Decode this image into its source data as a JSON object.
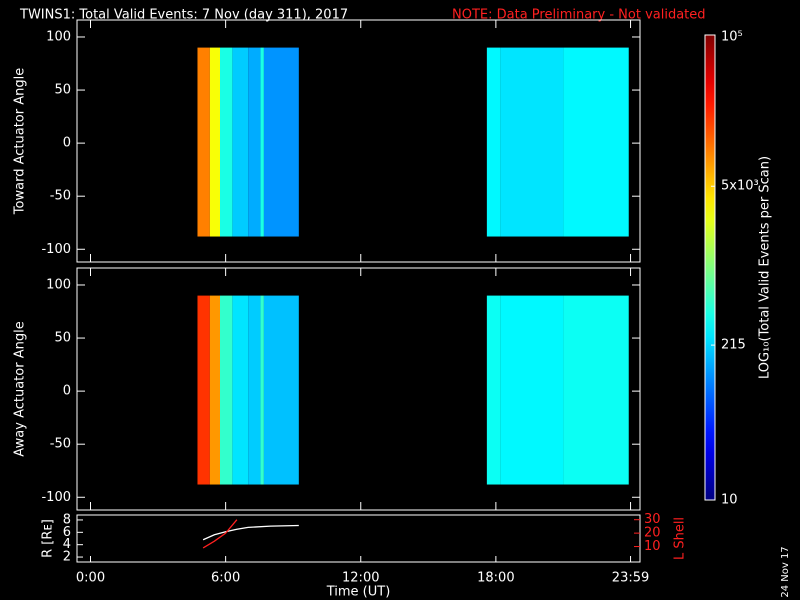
{
  "title": "TWINS1: Total Valid Events:  7 Nov (day 311), 2017",
  "note": "NOTE: Data Preliminary - Not validated",
  "date_stamp": "24 Nov 17",
  "chart_data": [
    {
      "type": "heatmap",
      "ylabel": "Toward Actuator Angle",
      "xlim": [
        -0.6,
        24.4
      ],
      "xticks": [
        0,
        6,
        12,
        18,
        23.98
      ],
      "ylim": [
        -112,
        116
      ],
      "yticks": [
        -100,
        -50,
        0,
        50,
        100
      ],
      "x_bins": [
        4.75,
        5.3,
        5.75,
        6.3,
        7.0,
        7.55,
        7.7,
        9.25,
        17.6,
        18.2,
        21.0,
        23.9
      ],
      "y_range": [
        -88,
        90
      ],
      "values": [
        10000,
        3000,
        400,
        200,
        150,
        400,
        120,
        null,
        300,
        250,
        300
      ],
      "clim": [
        10,
        100000
      ],
      "log": true
    },
    {
      "type": "heatmap",
      "ylabel": "Away Actuator Angle",
      "xlim": [
        -0.6,
        24.4
      ],
      "xticks": [
        0,
        6,
        12,
        18,
        23.98
      ],
      "ylim": [
        -112,
        116
      ],
      "yticks": [
        -100,
        -50,
        0,
        50,
        100
      ],
      "x_bins": [
        4.75,
        5.3,
        5.75,
        6.3,
        7.0,
        7.55,
        7.7,
        9.25,
        17.6,
        18.2,
        21.0,
        23.9
      ],
      "y_range": [
        -88,
        90
      ],
      "values": [
        20000,
        8000,
        500,
        250,
        200,
        500,
        180,
        null,
        350,
        300,
        350
      ],
      "clim": [
        10,
        100000
      ],
      "log": true
    },
    {
      "type": "colorbar",
      "label": "LOG₁₀(Total Valid Events per Scan)",
      "ylim": [
        10,
        100000
      ],
      "log": true,
      "yticks": [
        10,
        215,
        {
          "value": 5000,
          "label": "5x10³"
        },
        {
          "value": 100000,
          "label": "10⁵"
        }
      ]
    },
    {
      "type": "line",
      "xlabel": "Time (UT)",
      "xlim": [
        -0.6,
        24.4
      ],
      "xticks": [
        {
          "value": 0,
          "label": "0:00"
        },
        {
          "value": 6,
          "label": "6:00"
        },
        {
          "value": 12,
          "label": "12:00"
        },
        {
          "value": 18,
          "label": "18:00"
        },
        {
          "value": 23.98,
          "label": "23:59"
        }
      ],
      "ylabel": "R [Rᴇ]",
      "ylim": [
        1.2,
        8.8
      ],
      "yticks": [
        2,
        4,
        6,
        8
      ],
      "y2label": "L Shell",
      "y2lim": [
        -1.5,
        33.5
      ],
      "y2ticks": [
        10,
        20,
        30
      ],
      "y2color": "#ff2020",
      "series": [
        {
          "color": "#ffffff",
          "x": [
            5,
            5.5,
            6,
            6.5,
            7,
            8,
            9.25
          ],
          "values": [
            4.8,
            5.6,
            6.1,
            6.5,
            6.8,
            7.0,
            7.1
          ]
        },
        {
          "color": "#ff2020",
          "axis": "y2",
          "x": [
            5,
            5.5,
            6,
            6.5
          ],
          "values": [
            9,
            14,
            20,
            30
          ]
        }
      ]
    }
  ]
}
